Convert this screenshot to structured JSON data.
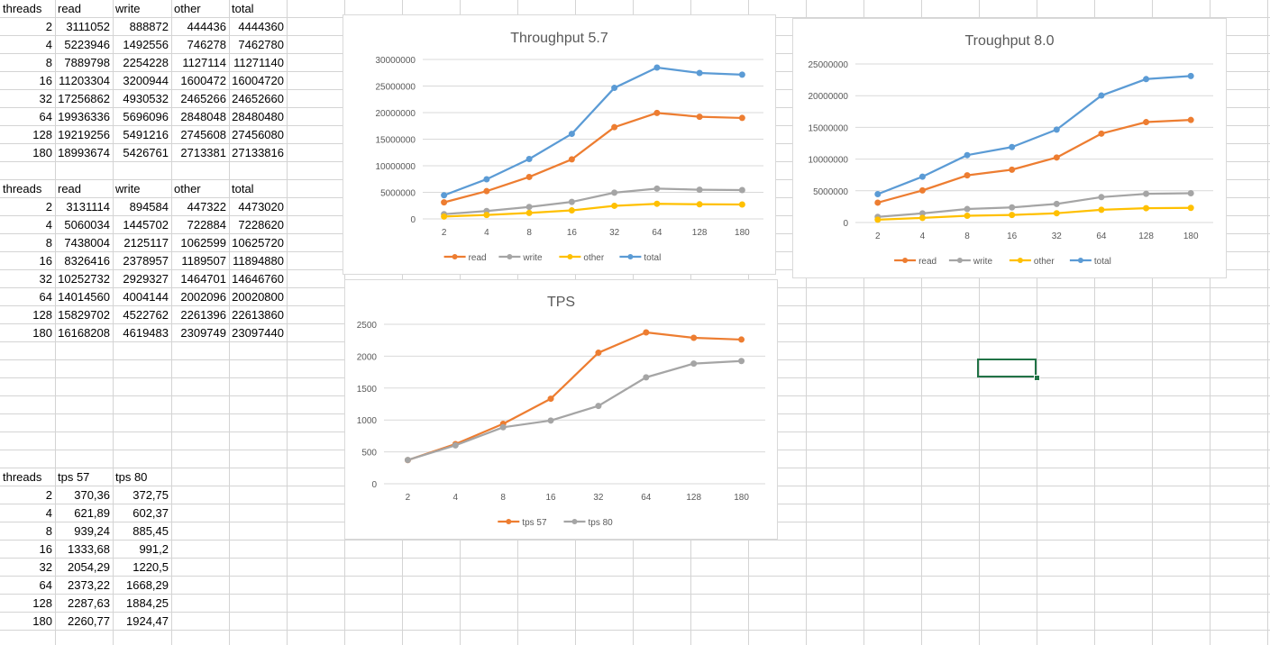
{
  "sheet": {
    "table1": {
      "headers": [
        "threads",
        "read",
        "write",
        "other",
        "total"
      ],
      "rows": [
        [
          "2",
          "3111052",
          "888872",
          "444436",
          "4444360"
        ],
        [
          "4",
          "5223946",
          "1492556",
          "746278",
          "7462780"
        ],
        [
          "8",
          "7889798",
          "2254228",
          "1127114",
          "11271140"
        ],
        [
          "16",
          "11203304",
          "3200944",
          "1600472",
          "16004720"
        ],
        [
          "32",
          "17256862",
          "4930532",
          "2465266",
          "24652660"
        ],
        [
          "64",
          "19936336",
          "5696096",
          "2848048",
          "28480480"
        ],
        [
          "128",
          "19219256",
          "5491216",
          "2745608",
          "27456080"
        ],
        [
          "180",
          "18993674",
          "5426761",
          "2713381",
          "27133816"
        ]
      ]
    },
    "table2": {
      "headers": [
        "threads",
        "read",
        "write",
        "other",
        "total"
      ],
      "rows": [
        [
          "2",
          "3131114",
          "894584",
          "447322",
          "4473020"
        ],
        [
          "4",
          "5060034",
          "1445702",
          "722884",
          "7228620"
        ],
        [
          "8",
          "7438004",
          "2125117",
          "1062599",
          "10625720"
        ],
        [
          "16",
          "8326416",
          "2378957",
          "1189507",
          "11894880"
        ],
        [
          "32",
          "10252732",
          "2929327",
          "1464701",
          "14646760"
        ],
        [
          "64",
          "14014560",
          "4004144",
          "2002096",
          "20020800"
        ],
        [
          "128",
          "15829702",
          "4522762",
          "2261396",
          "22613860"
        ],
        [
          "180",
          "16168208",
          "4619483",
          "2309749",
          "23097440"
        ]
      ]
    },
    "table3": {
      "headers": [
        "threads",
        "tps 57",
        "tps 80"
      ],
      "rows": [
        [
          "2",
          "370,36",
          "372,75"
        ],
        [
          "4",
          "621,89",
          "602,37"
        ],
        [
          "8",
          "939,24",
          "885,45"
        ],
        [
          "16",
          "1333,68",
          "991,2"
        ],
        [
          "32",
          "2054,29",
          "1220,5"
        ],
        [
          "64",
          "2373,22",
          "1668,29"
        ],
        [
          "128",
          "2287,63",
          "1884,25"
        ],
        [
          "180",
          "2260,77",
          "1924,47"
        ]
      ]
    }
  },
  "chart_data": [
    {
      "id": "throughput57",
      "type": "line",
      "title": "Throughput 5.7",
      "categories": [
        "2",
        "4",
        "8",
        "16",
        "32",
        "64",
        "128",
        "180"
      ],
      "ylim": [
        0,
        30000000
      ],
      "yticks": [
        "0",
        "5000000",
        "10000000",
        "15000000",
        "20000000",
        "25000000",
        "30000000"
      ],
      "legend_position": "bottom",
      "grid": true,
      "series": [
        {
          "name": "read",
          "color": "#ED7D31",
          "values": [
            3111052,
            5223946,
            7889798,
            11203304,
            17256862,
            19936336,
            19219256,
            18993674
          ]
        },
        {
          "name": "write",
          "color": "#A5A5A5",
          "values": [
            888872,
            1492556,
            2254228,
            3200944,
            4930532,
            5696096,
            5491216,
            5426761
          ]
        },
        {
          "name": "other",
          "color": "#FFC000",
          "values": [
            444436,
            746278,
            1127114,
            1600472,
            2465266,
            2848048,
            2745608,
            2713381
          ]
        },
        {
          "name": "total",
          "color": "#5B9BD5",
          "values": [
            4444360,
            7462780,
            11271140,
            16004720,
            24652660,
            28480480,
            27456080,
            27133816
          ]
        }
      ]
    },
    {
      "id": "throughput80",
      "type": "line",
      "title": "Troughput 8.0",
      "categories": [
        "2",
        "4",
        "8",
        "16",
        "32",
        "64",
        "128",
        "180"
      ],
      "ylim": [
        0,
        25000000
      ],
      "yticks": [
        "0",
        "5000000",
        "10000000",
        "15000000",
        "20000000",
        "25000000"
      ],
      "legend_position": "bottom",
      "grid": true,
      "series": [
        {
          "name": "read",
          "color": "#ED7D31",
          "values": [
            3131114,
            5060034,
            7438004,
            8326416,
            10252732,
            14014560,
            15829702,
            16168208
          ]
        },
        {
          "name": "write",
          "color": "#A5A5A5",
          "values": [
            894584,
            1445702,
            2125117,
            2378957,
            2929327,
            4004144,
            4522762,
            4619483
          ]
        },
        {
          "name": "other",
          "color": "#FFC000",
          "values": [
            447322,
            722884,
            1062599,
            1189507,
            1464701,
            2002096,
            2261396,
            2309749
          ]
        },
        {
          "name": "total",
          "color": "#5B9BD5",
          "values": [
            4473020,
            7228620,
            10625720,
            11894880,
            14646760,
            20020800,
            22613860,
            23097440
          ]
        }
      ]
    },
    {
      "id": "tps",
      "type": "line",
      "title": "TPS",
      "categories": [
        "2",
        "4",
        "8",
        "16",
        "32",
        "64",
        "128",
        "180"
      ],
      "ylim": [
        0,
        2500
      ],
      "yticks": [
        "0",
        "500",
        "1000",
        "1500",
        "2000",
        "2500"
      ],
      "legend_position": "bottom",
      "grid": true,
      "series": [
        {
          "name": "tps 57",
          "color": "#ED7D31",
          "values": [
            370.36,
            621.89,
            939.24,
            1333.68,
            2054.29,
            2373.22,
            2287.63,
            2260.77
          ]
        },
        {
          "name": "tps 80",
          "color": "#A5A5A5",
          "values": [
            372.75,
            602.37,
            885.45,
            991.2,
            1220.5,
            1668.29,
            1884.25,
            1924.47
          ]
        }
      ]
    }
  ]
}
